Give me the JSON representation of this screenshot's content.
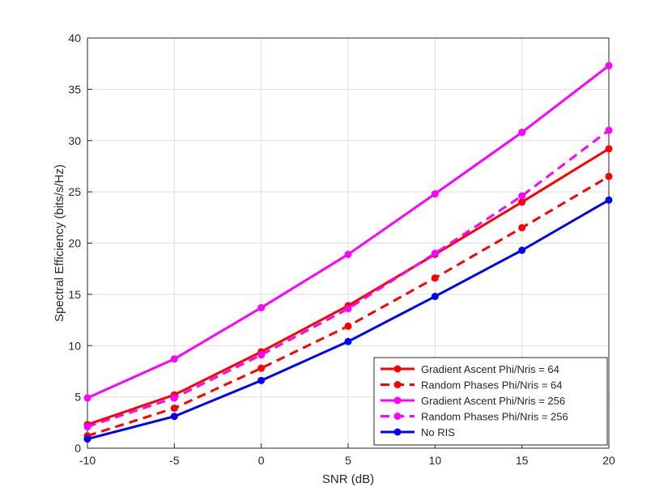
{
  "chart_data": {
    "type": "line",
    "title": "",
    "xlabel": "SNR (dB)",
    "ylabel": "Spectral Efficiency (bits/s/Hz)",
    "xlim": [
      -10,
      20
    ],
    "ylim": [
      0,
      40
    ],
    "xticks": [
      -10,
      -5,
      0,
      5,
      10,
      15,
      20
    ],
    "yticks": [
      0,
      5,
      10,
      15,
      20,
      25,
      30,
      35,
      40
    ],
    "grid": true,
    "legend_position": "bottom-right",
    "x": [
      -10,
      -5,
      0,
      5,
      10,
      15,
      20
    ],
    "series": [
      {
        "name": "Gradient Ascent Phi/Nris = 64",
        "color": "#ff0000",
        "dash": "solid",
        "values": [
          2.3,
          5.2,
          9.4,
          13.9,
          18.9,
          24.0,
          29.2
        ]
      },
      {
        "name": "Random Phases Phi/Nris = 64",
        "color": "#ff0000",
        "dash": "dashed",
        "values": [
          1.2,
          3.9,
          7.8,
          11.9,
          16.6,
          21.5,
          26.5
        ]
      },
      {
        "name": "Gradient Ascent Phi/Nris = 256",
        "color": "#ff00ff",
        "dash": "solid",
        "values": [
          4.9,
          8.7,
          13.7,
          18.9,
          24.8,
          30.8,
          37.3
        ]
      },
      {
        "name": "Random Phases Phi/Nris = 256",
        "color": "#ff00ff",
        "dash": "dashed",
        "values": [
          2.1,
          4.9,
          9.1,
          13.6,
          19.0,
          24.6,
          31.0
        ]
      },
      {
        "name": "No RIS",
        "color": "#0000ff",
        "dash": "solid",
        "values": [
          0.9,
          3.1,
          6.6,
          10.4,
          14.8,
          19.3,
          24.2
        ]
      }
    ]
  }
}
